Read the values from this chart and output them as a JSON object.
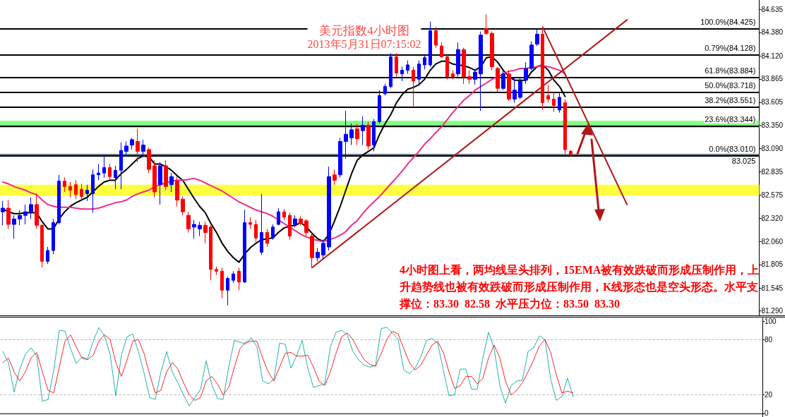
{
  "chart_data": [
    {
      "type": "candlestick",
      "title": "美元指数4小时图",
      "subtitle": "2013年5月31日07:15:02",
      "annotations": [
        "4小时图上看，两均线呈头排列，15EMA被有效跌破而形成压制作用，上升趋势线也被有效跌破而形成压制作用，K线形态也是空头形态。水平支撑位：83.30  82.58  水平压力位：83.50  83.30"
      ],
      "categories": [
        null,
        null,
        null,
        null,
        null,
        null,
        null,
        null,
        null,
        null,
        null,
        null,
        null,
        null,
        null,
        null,
        null,
        null,
        null,
        null,
        null,
        null,
        null,
        null,
        null,
        null,
        null,
        null,
        null,
        null,
        null,
        null,
        null,
        null,
        null,
        null,
        null,
        null,
        null,
        null,
        null,
        null,
        null,
        null,
        null,
        null,
        null,
        null,
        null,
        null,
        null,
        null,
        null,
        null,
        null,
        null,
        null,
        null,
        null,
        null,
        null,
        null,
        null,
        null,
        null,
        null,
        null,
        null,
        null,
        null,
        null,
        null,
        null,
        null,
        null,
        null,
        null,
        null,
        null,
        null,
        null,
        null,
        null,
        null,
        null,
        null,
        null,
        null,
        null,
        null,
        null,
        null,
        null,
        null,
        null,
        null,
        null,
        null,
        null,
        null,
        null,
        null,
        null,
        null,
        null,
        null,
        null,
        null,
        null,
        null,
        null,
        null,
        null,
        null,
        null,
        null,
        null,
        null,
        null,
        null,
        null,
        null,
        null,
        null,
        null,
        null,
        null,
        null,
        null,
        null,
        null,
        null,
        null,
        null,
        null
      ],
      "ohlc": [
        [
          82.39,
          82.51,
          82.24,
          82.43
        ],
        [
          82.43,
          82.52,
          82.2,
          82.25
        ],
        [
          82.25,
          82.35,
          82.09,
          82.31
        ],
        [
          82.31,
          82.41,
          82.24,
          82.35
        ],
        [
          82.35,
          82.47,
          82.25,
          82.39
        ],
        [
          82.39,
          82.55,
          82.31,
          82.47
        ],
        [
          82.47,
          82.59,
          82.2,
          82.24
        ],
        [
          82.24,
          82.25,
          81.77,
          81.84
        ],
        [
          81.84,
          82.0,
          81.81,
          81.96
        ],
        [
          81.96,
          82.31,
          81.92,
          82.27
        ],
        [
          82.27,
          82.8,
          82.25,
          82.73
        ],
        [
          82.73,
          82.77,
          82.61,
          82.67
        ],
        [
          82.67,
          82.72,
          82.55,
          82.63
        ],
        [
          82.69,
          82.74,
          82.53,
          82.58
        ],
        [
          82.64,
          82.7,
          82.51,
          82.56
        ],
        [
          82.59,
          82.69,
          82.51,
          82.63
        ],
        [
          82.59,
          82.86,
          82.38,
          82.8
        ],
        [
          82.8,
          82.92,
          82.74,
          82.82
        ],
        [
          82.82,
          83.02,
          82.77,
          82.88
        ],
        [
          82.88,
          82.92,
          82.75,
          82.78
        ],
        [
          82.77,
          82.9,
          82.64,
          82.85
        ],
        [
          82.85,
          83.16,
          82.64,
          83.07
        ],
        [
          83.06,
          83.17,
          83.0,
          83.12
        ],
        [
          83.13,
          83.21,
          83.08,
          83.19
        ],
        [
          83.17,
          83.31,
          82.94,
          83.06
        ],
        [
          83.06,
          83.19,
          83.0,
          83.13
        ],
        [
          83.08,
          83.1,
          82.82,
          82.86
        ],
        [
          82.9,
          82.96,
          82.55,
          82.61
        ],
        [
          82.69,
          82.94,
          82.47,
          82.9
        ],
        [
          82.9,
          82.96,
          82.63,
          82.67
        ],
        [
          82.69,
          82.82,
          82.61,
          82.78
        ],
        [
          82.73,
          82.78,
          82.45,
          82.52
        ],
        [
          82.53,
          82.56,
          82.35,
          82.39
        ],
        [
          82.35,
          82.39,
          82.16,
          82.2
        ],
        [
          82.22,
          82.3,
          82.09,
          82.25
        ],
        [
          82.2,
          82.28,
          82.12,
          82.24
        ],
        [
          82.24,
          82.28,
          82.04,
          82.16
        ],
        [
          82.22,
          82.24,
          81.63,
          81.75
        ],
        [
          81.75,
          81.78,
          81.69,
          81.73
        ],
        [
          81.73,
          81.77,
          81.43,
          81.52
        ],
        [
          81.52,
          81.67,
          81.35,
          81.65
        ],
        [
          81.63,
          81.73,
          81.6,
          81.7
        ],
        [
          81.73,
          81.77,
          81.52,
          81.61
        ],
        [
          81.61,
          82.41,
          81.6,
          82.27
        ],
        [
          82.27,
          82.33,
          82.2,
          82.25
        ],
        [
          82.25,
          82.3,
          82.06,
          82.1
        ],
        [
          81.94,
          82.59,
          81.91,
          82.16
        ],
        [
          82.16,
          82.2,
          82.0,
          82.04
        ],
        [
          82.1,
          82.25,
          82.08,
          82.22
        ],
        [
          82.25,
          82.43,
          82.24,
          82.39
        ],
        [
          82.39,
          82.42,
          82.3,
          82.33
        ],
        [
          82.35,
          82.38,
          82.08,
          82.12
        ],
        [
          82.25,
          82.35,
          82.22,
          82.31
        ],
        [
          82.31,
          82.34,
          82.24,
          82.26
        ],
        [
          82.29,
          82.31,
          82.12,
          82.16
        ],
        [
          82.12,
          82.16,
          81.77,
          81.88
        ],
        [
          81.88,
          81.99,
          81.84,
          81.94
        ],
        [
          81.91,
          82.08,
          81.87,
          82.04
        ],
        [
          82.0,
          82.89,
          81.96,
          82.78
        ],
        [
          82.8,
          82.86,
          82.69,
          82.74
        ],
        [
          82.8,
          83.21,
          82.77,
          83.17
        ],
        [
          83.17,
          83.51,
          82.98,
          83.25
        ],
        [
          83.21,
          83.37,
          83.13,
          83.3
        ],
        [
          83.31,
          83.37,
          83.13,
          83.2
        ],
        [
          83.29,
          83.45,
          83.13,
          83.35
        ],
        [
          83.35,
          83.39,
          83.08,
          83.12
        ],
        [
          83.13,
          83.42,
          83.06,
          83.39
        ],
        [
          83.39,
          83.74,
          83.37,
          83.68
        ],
        [
          83.7,
          83.81,
          83.68,
          83.78
        ],
        [
          83.78,
          84.15,
          83.76,
          84.11
        ],
        [
          84.11,
          84.15,
          83.89,
          83.93
        ],
        [
          83.92,
          84.0,
          83.84,
          83.96
        ],
        [
          83.96,
          84.07,
          83.92,
          84.02
        ],
        [
          83.96,
          84.0,
          83.55,
          83.84
        ],
        [
          83.86,
          84.07,
          83.81,
          84.03
        ],
        [
          84.02,
          84.13,
          83.97,
          84.1
        ],
        [
          84.02,
          84.5,
          84.0,
          84.4
        ],
        [
          84.4,
          84.44,
          84.21,
          84.24
        ],
        [
          84.23,
          84.27,
          84.1,
          84.11
        ],
        [
          84.11,
          84.13,
          83.86,
          83.89
        ],
        [
          83.92,
          83.96,
          83.86,
          83.89
        ],
        [
          83.92,
          84.27,
          83.89,
          84.19
        ],
        [
          84.19,
          84.21,
          83.81,
          83.89
        ],
        [
          83.89,
          83.96,
          83.81,
          83.86
        ],
        [
          83.86,
          83.96,
          83.8,
          83.94
        ],
        [
          83.92,
          84.39,
          83.51,
          84.35
        ],
        [
          84.42,
          84.58,
          84.35,
          84.37
        ],
        [
          84.37,
          84.39,
          83.96,
          84.0
        ],
        [
          83.98,
          84.0,
          83.72,
          83.76
        ],
        [
          83.76,
          83.96,
          83.74,
          83.92
        ],
        [
          83.92,
          83.96,
          83.62,
          83.64
        ],
        [
          83.64,
          83.88,
          83.6,
          83.74
        ],
        [
          83.66,
          83.88,
          83.64,
          83.84
        ],
        [
          83.85,
          84.05,
          83.81,
          83.98
        ],
        [
          83.98,
          84.28,
          83.96,
          84.24
        ],
        [
          84.25,
          84.41,
          84.23,
          84.36
        ],
        [
          84.36,
          84.425,
          83.52,
          83.6
        ],
        [
          83.68,
          83.8,
          83.6,
          83.64
        ],
        [
          83.64,
          83.72,
          83.5,
          83.57
        ],
        [
          83.52,
          83.72,
          83.49,
          83.66
        ],
        [
          83.6,
          83.64,
          83.03,
          83.08
        ],
        [
          83.06,
          83.08,
          83.01,
          83.025
        ],
        null,
        null,
        null,
        null,
        null,
        null,
        null,
        null,
        null,
        null,
        null,
        null,
        null,
        null,
        null,
        null,
        null,
        null,
        null,
        null,
        null,
        null,
        null,
        null,
        null,
        null,
        null,
        null,
        null,
        null,
        null,
        null,
        null
      ],
      "colors": [
        "#0000ff",
        "#ff0000",
        "#0000ff",
        "#0000ff",
        "#0000ff",
        "#0000ff",
        "#ff0000",
        "#ff0000",
        "#0000ff",
        "#0000ff",
        "#0000ff",
        "#ff0000",
        "#ff0000",
        "#ff0000",
        "#ff0000",
        "#0000ff",
        "#0000ff",
        "#0000ff",
        "#0000ff",
        "#ff0000",
        "#0000ff",
        "#0000ff",
        "#0000ff",
        "#0000ff",
        "#ff0000",
        "#0000ff",
        "#ff0000",
        "#ff0000",
        "#0000ff",
        "#ff0000",
        "#0000ff",
        "#ff0000",
        "#ff0000",
        "#ff0000",
        "#0000ff",
        "#0000ff",
        "#ff0000",
        "#ff0000",
        "#ff0000",
        "#ff0000",
        "#0000ff",
        "#0000ff",
        "#ff0000",
        "#0000ff",
        "#ff0000",
        "#ff0000",
        "#0000ff",
        "#ff0000",
        "#0000ff",
        "#0000ff",
        "#ff0000",
        "#ff0000",
        "#0000ff",
        "#ff0000",
        "#ff0000",
        "#ff0000",
        "#0000ff",
        "#0000ff",
        "#0000ff",
        "#ff0000",
        "#0000ff",
        "#0000ff",
        "#0000ff",
        "#ff0000",
        "#0000ff",
        "#ff0000",
        "#0000ff",
        "#0000ff",
        "#0000ff",
        "#0000ff",
        "#ff0000",
        "#0000ff",
        "#0000ff",
        "#ff0000",
        "#0000ff",
        "#0000ff",
        "#0000ff",
        "#ff0000",
        "#ff0000",
        "#ff0000",
        "#ff0000",
        "#0000ff",
        "#ff0000",
        "#ff0000",
        "#0000ff",
        "#0000ff",
        "#ff0000",
        "#ff0000",
        "#ff0000",
        "#0000ff",
        "#ff0000",
        "#0000ff",
        "#0000ff",
        "#0000ff",
        "#0000ff",
        "#0000ff",
        "#ff0000",
        "#ff0000",
        "#ff0000",
        "#0000ff",
        "#ff0000",
        "#ff0000",
        null,
        null,
        null,
        null,
        null,
        null,
        null,
        null,
        null,
        null,
        null,
        null,
        null,
        null,
        null,
        null,
        null,
        null,
        null,
        null,
        null,
        null,
        null,
        null,
        null,
        null,
        null,
        null,
        null,
        null,
        null,
        null,
        null
      ],
      "series": [
        {
          "type": "line",
          "color": "#000000",
          "values": [
            82.42,
            82.39,
            82.37,
            82.37,
            82.38,
            82.38,
            82.38,
            82.28,
            82.2,
            82.2,
            82.31,
            82.39,
            82.45,
            82.49,
            82.52,
            82.55,
            82.61,
            82.67,
            82.72,
            82.74,
            82.74,
            82.81,
            82.86,
            82.92,
            82.98,
            83.01,
            83.0,
            82.92,
            82.92,
            82.89,
            82.85,
            82.79,
            82.74,
            82.64,
            82.54,
            82.45,
            82.38,
            82.26,
            82.16,
            82.04,
            81.95,
            81.88,
            81.83,
            81.92,
            81.99,
            82.04,
            82.08,
            82.09,
            82.1,
            82.16,
            82.21,
            82.23,
            82.24,
            82.27,
            82.22,
            82.15,
            82.09,
            82.06,
            82.14,
            82.29,
            82.45,
            82.63,
            82.81,
            82.96,
            83.02,
            83.06,
            83.1,
            83.25,
            83.37,
            83.47,
            83.6,
            83.69,
            83.75,
            83.77,
            83.8,
            83.86,
            83.96,
            84.03,
            84.06,
            84.06,
            84.03,
            84.02,
            84.01,
            83.99,
            83.96,
            84.0,
            84.1,
            84.11,
            84.05,
            83.96,
            83.89,
            83.85,
            83.85,
            83.85,
            83.94,
            84.0,
            84.02,
            83.96,
            83.85,
            83.78,
            83.67,
            null,
            null,
            null,
            null,
            null,
            null,
            null,
            null,
            null,
            null,
            null,
            null,
            null,
            null,
            null,
            null,
            null,
            null,
            null,
            null,
            null,
            null,
            null,
            null,
            null,
            null,
            null,
            null,
            null,
            null,
            null,
            null,
            null,
            null
          ]
        },
        {
          "type": "line",
          "color": "#ee2c8c",
          "values": [
            82.72,
            82.7,
            82.67,
            82.65,
            82.63,
            82.6,
            82.58,
            82.52,
            82.47,
            82.45,
            82.44,
            82.44,
            82.44,
            82.43,
            82.42,
            82.42,
            82.42,
            82.43,
            82.45,
            82.47,
            82.49,
            82.5,
            82.52,
            82.56,
            82.59,
            82.61,
            82.63,
            82.67,
            82.69,
            82.71,
            82.73,
            82.74,
            82.74,
            82.75,
            82.76,
            82.74,
            82.71,
            82.68,
            82.65,
            82.62,
            82.58,
            82.54,
            82.5,
            82.47,
            82.44,
            82.41,
            82.39,
            82.37,
            82.34,
            82.3,
            82.26,
            82.22,
            82.18,
            82.14,
            82.11,
            82.09,
            82.07,
            82.06,
            82.08,
            82.1,
            82.13,
            82.17,
            82.24,
            82.29,
            82.37,
            82.44,
            82.5,
            82.56,
            82.63,
            82.7,
            82.77,
            82.84,
            82.92,
            82.99,
            83.06,
            83.14,
            83.2,
            83.27,
            83.33,
            83.41,
            83.49,
            83.56,
            83.63,
            83.68,
            83.74,
            83.78,
            83.82,
            83.86,
            83.89,
            83.92,
            83.95,
            83.96,
            83.98,
            83.98,
            83.99,
            84.0,
            84.01,
            84.0,
            83.98,
            83.96,
            83.92,
            null,
            null,
            null,
            null,
            null,
            null,
            null,
            null,
            null,
            null,
            null,
            null,
            null,
            null,
            null,
            null,
            null,
            null,
            null,
            null,
            null,
            null,
            null,
            null,
            null,
            null,
            null,
            null,
            null,
            null,
            null,
            null,
            null,
            null
          ]
        },
        {
          "type": "line",
          "color": "#b01818",
          "values": [
            null,
            null,
            null,
            null,
            null,
            null,
            null,
            null,
            null,
            null,
            null,
            null,
            null,
            null,
            null,
            null,
            null,
            null,
            null,
            null,
            null,
            null,
            null,
            null,
            null,
            null,
            null,
            null,
            null,
            null,
            null,
            null,
            null,
            null,
            null,
            null,
            null,
            null,
            null,
            null,
            null,
            null,
            null,
            null,
            null,
            null,
            null,
            null,
            null,
            null,
            null,
            null,
            null,
            null,
            null,
            81.77,
            null,
            null,
            null,
            null,
            null,
            null,
            null,
            null,
            null,
            null,
            null,
            null,
            null,
            null,
            null,
            null,
            null,
            null,
            null,
            null,
            null,
            null,
            null,
            null,
            null,
            null,
            null,
            null,
            null,
            null,
            null,
            null,
            null,
            null,
            null,
            null,
            null,
            null,
            null,
            null,
            null,
            null,
            null,
            null,
            null,
            null,
            null,
            null,
            null,
            null,
            null,
            null,
            null,
            null,
            null,
            84.52,
            null,
            null,
            null,
            null,
            null,
            null,
            null,
            null,
            null,
            null,
            null,
            null,
            null,
            null,
            null,
            null,
            null,
            null,
            null,
            null,
            null,
            null,
            null
          ]
        },
        {
          "type": "line",
          "color": "#b01818",
          "values": [
            null,
            null,
            null,
            null,
            null,
            null,
            null,
            null,
            null,
            null,
            null,
            null,
            null,
            null,
            null,
            null,
            null,
            null,
            null,
            null,
            null,
            null,
            null,
            null,
            null,
            null,
            null,
            null,
            null,
            null,
            null,
            null,
            null,
            null,
            null,
            null,
            null,
            null,
            null,
            null,
            null,
            null,
            null,
            null,
            null,
            null,
            null,
            null,
            null,
            null,
            null,
            null,
            null,
            null,
            null,
            null,
            null,
            null,
            null,
            null,
            null,
            null,
            null,
            null,
            null,
            null,
            null,
            null,
            null,
            null,
            null,
            null,
            null,
            null,
            null,
            null,
            null,
            null,
            null,
            null,
            null,
            null,
            null,
            null,
            null,
            null,
            null,
            null,
            null,
            null,
            null,
            null,
            null,
            null,
            null,
            null,
            84.44,
            null,
            null,
            null,
            null,
            null,
            null,
            null,
            null,
            null,
            null,
            null,
            null,
            null,
            null,
            82.47,
            null,
            null,
            null,
            null,
            null,
            null,
            null,
            null,
            null,
            null,
            null,
            null,
            null,
            null,
            null,
            null,
            null,
            null,
            null,
            null,
            null,
            null,
            null
          ]
        }
      ],
      "ylim": [
        81.24,
        84.74
      ],
      "yticks": [
        {
          "value": 84.635,
          "label": "84.635"
        },
        {
          "value": 84.38,
          "label": "84.380"
        },
        {
          "value": 84.12,
          "label": "84.120"
        },
        {
          "value": 83.865,
          "label": "83.865"
        },
        {
          "value": 83.605,
          "label": "83.605"
        },
        {
          "value": 83.35,
          "label": "83.350"
        },
        {
          "value": 83.09,
          "label": "83.090"
        },
        {
          "value": 82.835,
          "label": "82.835"
        },
        {
          "value": 82.575,
          "label": "82.575"
        },
        {
          "value": 82.32,
          "label": "82.320"
        },
        {
          "value": 82.06,
          "label": "82.060"
        },
        {
          "value": 81.805,
          "label": "81.805"
        },
        {
          "value": 81.545,
          "label": "81.545"
        },
        {
          "value": 81.29,
          "label": "81.290"
        }
      ],
      "ref_lines": [
        {
          "axis": "y",
          "value": 84.425,
          "label": "100.0%(84.425)",
          "color": "#000000"
        },
        {
          "axis": "y",
          "value": 84.128,
          "label": "0.79%(84.128)",
          "color": "#000000"
        },
        {
          "axis": "y",
          "value": 83.884,
          "label": "61.8%(83.884)",
          "color": "#000000"
        },
        {
          "axis": "y",
          "value": 83.718,
          "label": "50.0%(83.718)",
          "color": "#000000"
        },
        {
          "axis": "y",
          "value": 83.551,
          "label": "38.2%(83.551)",
          "color": "#000000"
        },
        {
          "axis": "y",
          "value": 83.344,
          "label": "23.6%(83.344)",
          "color": "#000000"
        },
        {
          "axis": "y",
          "value": 83.01,
          "label": "0.0%(83.010)",
          "color": "#000000"
        },
        {
          "axis": "y",
          "value": 83.025,
          "label": "83.025",
          "color": "#708090"
        }
      ],
      "bands": [
        {
          "axis": "y",
          "from": 83.32,
          "to": 83.4,
          "color": "#80ff80"
        },
        {
          "axis": "y",
          "from": 82.57,
          "to": 82.69,
          "color": "#ffff40"
        }
      ],
      "grid": false,
      "tick_labels": "y"
    },
    {
      "type": "line",
      "categories": [
        null,
        null,
        null,
        null,
        null,
        null,
        null,
        null,
        null,
        null,
        null,
        null,
        null,
        null,
        null,
        null,
        null,
        null,
        null,
        null,
        null,
        null,
        null,
        null,
        null,
        null,
        null,
        null,
        null,
        null,
        null,
        null,
        null,
        null,
        null,
        null,
        null,
        null,
        null,
        null,
        null,
        null,
        null,
        null,
        null,
        null,
        null,
        null,
        null,
        null,
        null,
        null,
        null,
        null,
        null,
        null,
        null,
        null,
        null,
        null,
        null,
        null,
        null,
        null,
        null,
        null,
        null,
        null,
        null,
        null,
        null,
        null,
        null,
        null,
        null,
        null,
        null,
        null,
        null,
        null,
        null,
        null,
        null,
        null,
        null,
        null,
        null,
        null,
        null,
        null,
        null,
        null,
        null,
        null,
        null,
        null,
        null,
        null,
        null,
        null,
        null,
        null,
        null,
        null,
        null,
        null,
        null,
        null,
        null,
        null,
        null,
        null,
        null,
        null,
        null,
        null,
        null,
        null,
        null,
        null,
        null,
        null,
        null,
        null,
        null,
        null,
        null,
        null,
        null,
        null,
        null,
        null,
        null,
        null,
        null
      ],
      "series": [
        {
          "color": "#20b2aa",
          "line_style": "solid",
          "values": [
            67,
            55,
            23,
            48,
            64,
            71,
            62,
            13,
            15,
            46,
            90,
            89,
            70,
            54,
            61,
            59,
            78,
            93,
            84,
            64,
            19,
            63,
            83,
            86,
            67,
            44,
            17,
            15,
            45,
            67,
            45,
            33,
            20,
            8,
            17,
            26,
            57,
            31,
            16,
            15,
            50,
            79,
            77,
            75,
            82,
            72,
            35,
            32,
            37,
            76,
            75,
            49,
            62,
            79,
            49,
            28,
            30,
            32,
            72,
            88,
            90,
            85,
            67,
            58,
            52,
            50,
            52,
            92,
            93,
            87,
            80,
            47,
            43,
            49,
            61,
            79,
            81,
            76,
            47,
            19,
            20,
            48,
            48,
            26,
            26,
            60,
            88,
            70,
            30,
            11,
            30,
            35,
            36,
            67,
            71,
            84,
            80,
            37,
            14,
            18,
            38,
            18,
            null,
            null,
            null,
            null,
            null,
            null,
            null,
            null,
            null,
            null,
            null,
            null,
            null,
            null,
            null,
            null,
            null,
            null,
            null,
            null,
            null,
            null,
            null,
            null,
            null,
            null,
            null,
            null,
            null,
            null,
            null,
            null,
            null
          ]
        },
        {
          "color": "#ff0000",
          "line_style": "dotted",
          "values": [
            55,
            60,
            45,
            35,
            45,
            60,
            66,
            45,
            25,
            22,
            50,
            78,
            85,
            72,
            60,
            58,
            63,
            78,
            85,
            80,
            55,
            40,
            58,
            78,
            80,
            65,
            42,
            22,
            25,
            45,
            55,
            48,
            33,
            20,
            14,
            17,
            35,
            40,
            32,
            20,
            28,
            50,
            70,
            77,
            78,
            78,
            60,
            45,
            35,
            50,
            65,
            66,
            62,
            62,
            63,
            50,
            35,
            30,
            45,
            65,
            83,
            87,
            80,
            68,
            58,
            53,
            51,
            65,
            80,
            89,
            86,
            70,
            55,
            47,
            52,
            63,
            74,
            78,
            66,
            45,
            27,
            30,
            40,
            40,
            32,
            38,
            60,
            74,
            60,
            35,
            20,
            25,
            33,
            45,
            58,
            73,
            80,
            66,
            42,
            22,
            24,
            22,
            null,
            null,
            null,
            null,
            null,
            null,
            null,
            null,
            null,
            null,
            null,
            null,
            null,
            null,
            null,
            null,
            null,
            null,
            null,
            null,
            null,
            null,
            null,
            null,
            null,
            null,
            null,
            null,
            null,
            null,
            null,
            null,
            null
          ]
        }
      ],
      "ylim": [
        -4,
        103
      ],
      "yticks": [
        0,
        20,
        80,
        100
      ],
      "ref_lines": [
        {
          "axis": "y",
          "value": 20,
          "label": null,
          "color": "#c0c0c0",
          "line_style": "dashed"
        },
        {
          "axis": "y",
          "value": 80,
          "label": null,
          "color": "#c0c0c0",
          "line_style": "dashed"
        }
      ],
      "grid": false,
      "tick_labels": "y"
    }
  ]
}
